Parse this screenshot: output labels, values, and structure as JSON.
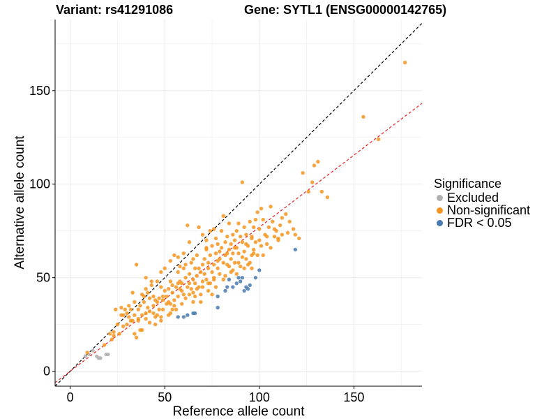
{
  "header": {
    "variant_text": "Variant: rs41291086",
    "gene_text": "Gene: SYTL1 (ENSG00000142765)"
  },
  "legend": {
    "title": "Significance",
    "items": [
      {
        "label": "Excluded",
        "color": "#b0b0b0"
      },
      {
        "label": "Non-significant",
        "color": "#f5951f"
      },
      {
        "label": "FDR < 0.05",
        "color": "#4a7aae"
      }
    ]
  },
  "colors": {
    "excluded": "#b0b0b0",
    "nonsig": "#f5951f",
    "sig": "#4a7aae",
    "identity_line": "#000000",
    "fit_line": "#e8211f",
    "grid": "#ebebeb"
  },
  "chart_data": {
    "type": "scatter",
    "xlabel": "Reference allele count",
    "ylabel": "Alternative allele count",
    "xlim": [
      -8,
      186
    ],
    "ylim": [
      -8,
      188
    ],
    "xticks": [
      0,
      50,
      100,
      150
    ],
    "yticks": [
      0,
      50,
      100,
      150
    ],
    "grid": true,
    "legend_position": "right",
    "reference_lines": [
      {
        "name": "identity",
        "style": "dashed",
        "color": "#000000",
        "slope": 1,
        "intercept": 0
      },
      {
        "name": "fit",
        "style": "dashed",
        "color": "#e8211f",
        "slope": 0.77,
        "intercept": 0
      }
    ],
    "series": [
      {
        "name": "Excluded",
        "points": [
          [
            8,
            8
          ],
          [
            10,
            9
          ],
          [
            14,
            8
          ],
          [
            15,
            7
          ],
          [
            16,
            7
          ],
          [
            19,
            9
          ],
          [
            20,
            9
          ],
          [
            12,
            11
          ]
        ]
      },
      {
        "name": "FDR < 0.05",
        "points": [
          [
            57,
            29
          ],
          [
            60,
            29
          ],
          [
            62,
            30
          ],
          [
            65,
            31
          ],
          [
            66,
            31
          ],
          [
            78,
            34
          ],
          [
            78,
            40
          ],
          [
            82,
            43
          ],
          [
            83,
            45
          ],
          [
            84,
            49
          ],
          [
            86,
            45
          ],
          [
            88,
            47
          ],
          [
            89,
            50
          ],
          [
            90,
            48
          ],
          [
            91,
            50
          ],
          [
            92,
            43
          ],
          [
            93,
            45
          ],
          [
            94,
            44
          ],
          [
            95,
            46
          ],
          [
            98,
            50
          ],
          [
            100,
            54
          ],
          [
            119,
            65
          ]
        ]
      },
      {
        "name": "Non-significant",
        "points": [
          [
            9,
            10
          ],
          [
            18,
            14
          ],
          [
            22,
            17
          ],
          [
            24,
            33
          ],
          [
            27,
            34
          ],
          [
            28,
            30
          ],
          [
            30,
            25
          ],
          [
            31,
            29
          ],
          [
            32,
            33
          ],
          [
            33,
            42
          ],
          [
            34,
            20
          ],
          [
            35,
            18
          ],
          [
            35,
            57
          ],
          [
            36,
            27
          ],
          [
            37,
            35
          ],
          [
            37,
            22
          ],
          [
            38,
            30
          ],
          [
            38,
            22
          ],
          [
            39,
            40
          ],
          [
            40,
            28
          ],
          [
            40,
            50
          ],
          [
            41,
            34
          ],
          [
            42,
            26
          ],
          [
            42,
            39
          ],
          [
            43,
            48
          ],
          [
            44,
            31
          ],
          [
            44,
            35
          ],
          [
            45,
            25
          ],
          [
            45,
            38
          ],
          [
            46,
            48
          ],
          [
            46,
            30
          ],
          [
            47,
            33
          ],
          [
            47,
            39
          ],
          [
            48,
            29
          ],
          [
            48,
            45
          ],
          [
            49,
            38
          ],
          [
            49,
            33
          ],
          [
            50,
            43
          ],
          [
            50,
            55
          ],
          [
            51,
            36
          ],
          [
            51,
            40
          ],
          [
            52,
            30
          ],
          [
            52,
            44
          ],
          [
            53,
            48
          ],
          [
            53,
            36
          ],
          [
            54,
            42
          ],
          [
            54,
            46
          ],
          [
            55,
            38
          ],
          [
            55,
            62
          ],
          [
            56,
            45
          ],
          [
            56,
            33
          ],
          [
            57,
            40
          ],
          [
            57,
            53
          ],
          [
            58,
            44
          ],
          [
            58,
            48
          ],
          [
            59,
            36
          ],
          [
            59,
            47
          ],
          [
            60,
            41
          ],
          [
            60,
            55
          ],
          [
            61,
            39
          ],
          [
            61,
            50
          ],
          [
            62,
            45
          ],
          [
            62,
            78
          ],
          [
            63,
            47
          ],
          [
            63,
            52
          ],
          [
            64,
            44
          ],
          [
            64,
            58
          ],
          [
            65,
            49
          ],
          [
            65,
            42
          ],
          [
            66,
            55
          ],
          [
            66,
            47
          ],
          [
            67,
            51
          ],
          [
            67,
            62
          ],
          [
            68,
            45
          ],
          [
            68,
            55
          ],
          [
            69,
            53
          ],
          [
            69,
            41
          ],
          [
            70,
            57
          ],
          [
            70,
            48
          ],
          [
            71,
            52
          ],
          [
            71,
            60
          ],
          [
            72,
            49
          ],
          [
            72,
            65
          ],
          [
            73,
            55
          ],
          [
            73,
            58
          ],
          [
            74,
            47
          ],
          [
            74,
            62
          ],
          [
            75,
            53
          ],
          [
            75,
            67
          ],
          [
            76,
            50
          ],
          [
            76,
            57
          ],
          [
            77,
            63
          ],
          [
            77,
            71
          ],
          [
            78,
            55
          ],
          [
            78,
            59
          ],
          [
            79,
            64
          ],
          [
            79,
            52
          ],
          [
            80,
            66
          ],
          [
            80,
            75
          ],
          [
            81,
            58
          ],
          [
            81,
            83
          ],
          [
            82,
            62
          ],
          [
            82,
            69
          ],
          [
            83,
            57
          ],
          [
            83,
            72
          ],
          [
            84,
            65
          ],
          [
            84,
            79
          ],
          [
            85,
            60
          ],
          [
            85,
            68
          ],
          [
            86,
            73
          ],
          [
            86,
            63
          ],
          [
            87,
            70
          ],
          [
            87,
            58
          ],
          [
            88,
            75
          ],
          [
            88,
            66
          ],
          [
            89,
            79
          ],
          [
            89,
            63
          ],
          [
            90,
            72
          ],
          [
            90,
            56
          ],
          [
            91,
            101
          ],
          [
            91,
            69
          ],
          [
            92,
            77
          ],
          [
            92,
            64
          ],
          [
            93,
            73
          ],
          [
            93,
            68
          ],
          [
            94,
            67
          ],
          [
            95,
            58
          ],
          [
            95,
            80
          ],
          [
            96,
            71
          ],
          [
            96,
            62
          ],
          [
            97,
            77
          ],
          [
            97,
            65
          ],
          [
            98,
            81
          ],
          [
            98,
            69
          ],
          [
            99,
            85
          ],
          [
            99,
            62
          ],
          [
            100,
            76
          ],
          [
            101,
            87
          ],
          [
            101,
            67
          ],
          [
            102,
            81
          ],
          [
            103,
            73
          ],
          [
            104,
            72
          ],
          [
            105,
            77
          ],
          [
            106,
            88
          ],
          [
            107,
            80
          ],
          [
            108,
            72
          ],
          [
            109,
            75
          ],
          [
            110,
            70
          ],
          [
            112,
            73
          ],
          [
            112,
            82
          ],
          [
            114,
            84
          ],
          [
            116,
            80
          ],
          [
            118,
            76
          ],
          [
            121,
            71
          ],
          [
            123,
            106
          ],
          [
            126,
            96
          ],
          [
            129,
            110
          ],
          [
            131,
            112
          ],
          [
            128,
            101
          ],
          [
            133,
            96
          ],
          [
            136,
            93
          ],
          [
            155,
            136
          ],
          [
            163,
            124
          ],
          [
            177,
            165
          ],
          [
            29,
            33
          ],
          [
            31,
            35
          ],
          [
            36,
            28
          ],
          [
            33,
            27
          ],
          [
            39,
            37
          ],
          [
            41,
            42
          ],
          [
            44,
            40
          ],
          [
            46,
            37
          ],
          [
            49,
            40
          ],
          [
            52,
            37
          ],
          [
            54,
            33
          ],
          [
            57,
            47
          ],
          [
            59,
            43
          ],
          [
            63,
            41
          ],
          [
            65,
            37
          ],
          [
            67,
            44
          ],
          [
            69,
            37
          ],
          [
            73,
            43
          ],
          [
            75,
            41
          ],
          [
            77,
            45
          ],
          [
            81,
            49
          ],
          [
            85,
            53
          ],
          [
            89,
            58
          ],
          [
            93,
            60
          ],
          [
            97,
            63
          ],
          [
            68,
            77
          ],
          [
            72,
            70
          ],
          [
            74,
            75
          ],
          [
            76,
            76
          ],
          [
            70,
            73
          ],
          [
            63,
            69
          ],
          [
            60,
            63
          ],
          [
            58,
            56
          ],
          [
            53,
            59
          ],
          [
            48,
            53
          ],
          [
            43,
            46
          ],
          [
            40,
            44
          ],
          [
            38,
            41
          ],
          [
            34,
            37
          ],
          [
            30,
            31
          ],
          [
            27,
            30
          ],
          [
            25,
            25
          ],
          [
            23,
            21
          ],
          [
            21,
            20
          ],
          [
            26,
            20
          ],
          [
            23,
            19
          ],
          [
            28,
            24
          ],
          [
            32,
            27
          ],
          [
            34,
            30
          ],
          [
            36,
            33
          ],
          [
            57,
            61
          ],
          [
            61,
            57
          ],
          [
            65,
            60
          ],
          [
            72,
            66
          ],
          [
            78,
            68
          ],
          [
            83,
            63
          ],
          [
            87,
            66
          ],
          [
            91,
            61
          ],
          [
            96,
            72
          ],
          [
            100,
            70
          ],
          [
            104,
            68
          ],
          [
            108,
            76
          ],
          [
            111,
            78
          ],
          [
            115,
            74
          ],
          [
            119,
            73
          ],
          [
            102,
            62
          ],
          [
            106,
            66
          ],
          [
            110,
            71
          ],
          [
            79,
            60
          ],
          [
            82,
            51
          ],
          [
            84,
            56
          ],
          [
            86,
            54
          ],
          [
            88,
            52
          ],
          [
            92,
            55
          ],
          [
            94,
            57
          ],
          [
            96,
            55
          ],
          [
            66,
            40
          ],
          [
            70,
            45
          ],
          [
            73,
            47
          ],
          [
            76,
            49
          ],
          [
            55,
            35
          ],
          [
            53,
            31
          ],
          [
            48,
            27
          ],
          [
            45,
            29
          ],
          [
            42,
            32
          ],
          [
            40,
            31
          ]
        ]
      }
    ]
  }
}
